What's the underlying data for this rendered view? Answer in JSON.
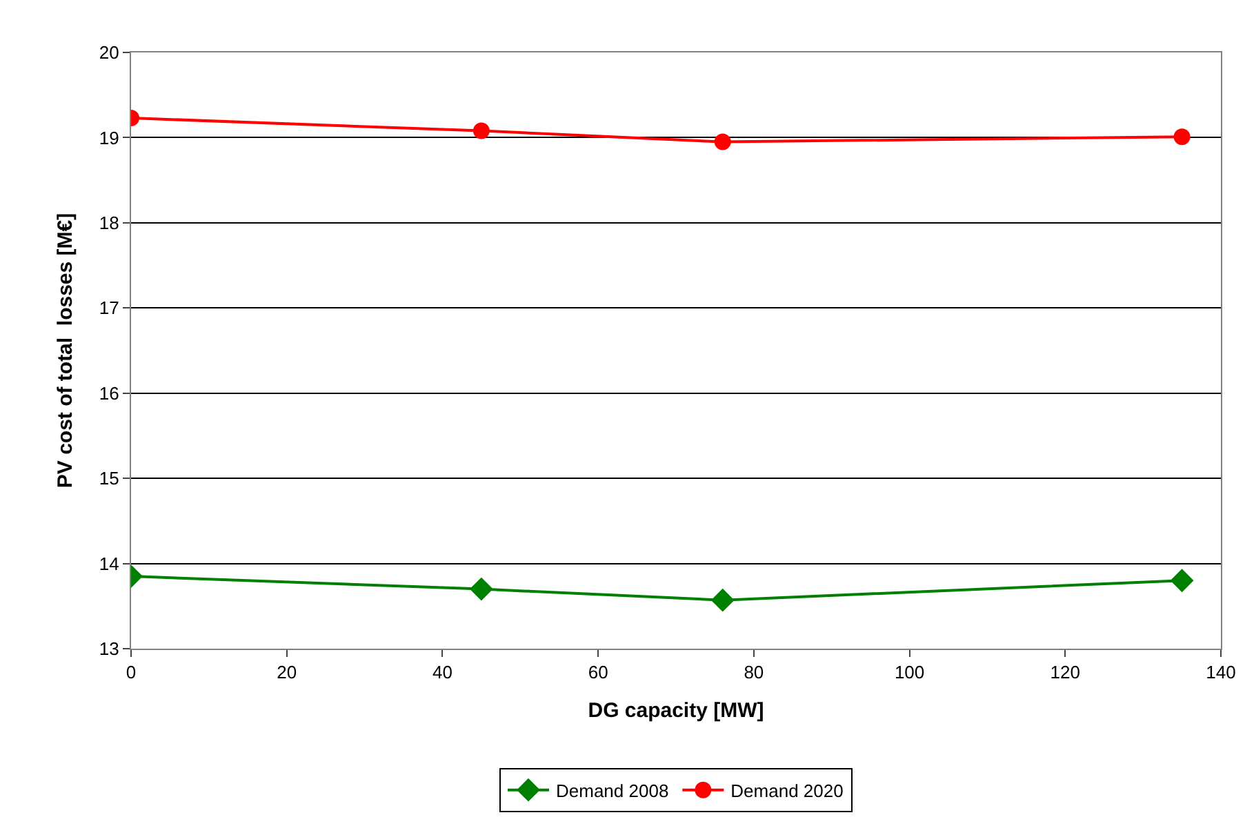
{
  "chart_data": {
    "type": "line",
    "xlabel": "DG capacity [MW]",
    "ylabel": "PV cost of total  losses [M€]",
    "x": [
      0,
      45,
      76,
      135
    ],
    "series": [
      {
        "name": "Demand 2008",
        "color": "#008000",
        "marker": "diamond",
        "values": [
          13.85,
          13.7,
          13.57,
          13.8
        ]
      },
      {
        "name": "Demand 2020",
        "color": "#ff0000",
        "marker": "circle",
        "values": [
          19.23,
          19.08,
          18.95,
          19.01
        ]
      }
    ],
    "xlim": [
      0,
      140
    ],
    "xticks": [
      0,
      20,
      40,
      60,
      80,
      100,
      120,
      140
    ],
    "ylim": [
      13,
      20
    ],
    "yticks": [
      13,
      14,
      15,
      16,
      17,
      18,
      19,
      20
    ],
    "grid": "y",
    "legend": "bottom",
    "line_style": "solid"
  }
}
